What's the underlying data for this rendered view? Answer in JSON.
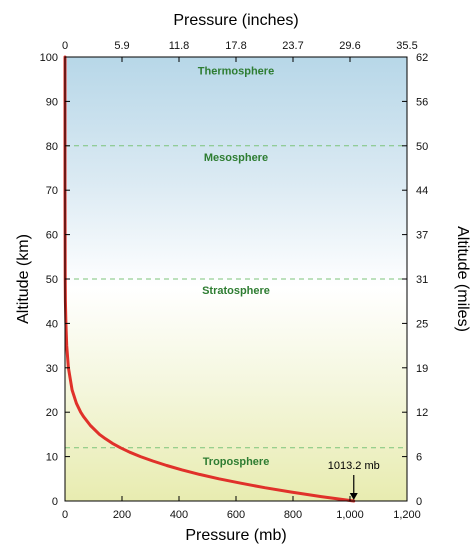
{
  "chart_data": {
    "type": "line",
    "xlabel_bottom": "Pressure (mb)",
    "xlabel_top": "Pressure (inches)",
    "ylabel_left": "Altitude (km)",
    "ylabel_right": "Altitude (miles)",
    "xlim": [
      0,
      1200
    ],
    "ylim": [
      0,
      100
    ],
    "x_ticks_bottom": [
      {
        "value": 0,
        "label": "0"
      },
      {
        "value": 200,
        "label": "200"
      },
      {
        "value": 400,
        "label": "400"
      },
      {
        "value": 600,
        "label": "600"
      },
      {
        "value": 800,
        "label": "800"
      },
      {
        "value": 1000,
        "label": "1,000"
      },
      {
        "value": 1200,
        "label": "1,200"
      }
    ],
    "x_ticks_top": [
      {
        "value": 0,
        "label": "0"
      },
      {
        "value": 200,
        "label": "5.9"
      },
      {
        "value": 400,
        "label": "11.8"
      },
      {
        "value": 600,
        "label": "17.8"
      },
      {
        "value": 800,
        "label": "23.7"
      },
      {
        "value": 1000,
        "label": "29.6"
      },
      {
        "value": 1200,
        "label": "35.5"
      }
    ],
    "y_ticks_left": [
      {
        "value": 0,
        "label": "0"
      },
      {
        "value": 10,
        "label": "10"
      },
      {
        "value": 20,
        "label": "20"
      },
      {
        "value": 30,
        "label": "30"
      },
      {
        "value": 40,
        "label": "40"
      },
      {
        "value": 50,
        "label": "50"
      },
      {
        "value": 60,
        "label": "60"
      },
      {
        "value": 70,
        "label": "70"
      },
      {
        "value": 80,
        "label": "80"
      },
      {
        "value": 90,
        "label": "90"
      },
      {
        "value": 100,
        "label": "100"
      }
    ],
    "y_ticks_right": [
      {
        "value": 0,
        "label": "0"
      },
      {
        "value": 10,
        "label": "6"
      },
      {
        "value": 20,
        "label": "12"
      },
      {
        "value": 30,
        "label": "19"
      },
      {
        "value": 40,
        "label": "25"
      },
      {
        "value": 50,
        "label": "31"
      },
      {
        "value": 60,
        "label": "37"
      },
      {
        "value": 70,
        "label": "44"
      },
      {
        "value": 80,
        "label": "50"
      },
      {
        "value": 90,
        "label": "56"
      },
      {
        "value": 100,
        "label": "62"
      }
    ],
    "layer_boundaries_km": [
      12,
      50,
      80
    ],
    "layers": [
      {
        "name": "Thermosphere",
        "label_altitude_km": 97
      },
      {
        "name": "Mesosphere",
        "label_altitude_km": 77.5
      },
      {
        "name": "Stratosphere",
        "label_altitude_km": 47.5
      },
      {
        "name": "Troposphere",
        "label_altitude_km": 9
      }
    ],
    "series": [
      {
        "points": [
          {
            "x": 1013.2,
            "y": 0
          },
          {
            "x": 899,
            "y": 1
          },
          {
            "x": 795,
            "y": 2
          },
          {
            "x": 701,
            "y": 3
          },
          {
            "x": 617,
            "y": 4
          },
          {
            "x": 540,
            "y": 5
          },
          {
            "x": 472,
            "y": 6
          },
          {
            "x": 411,
            "y": 7
          },
          {
            "x": 357,
            "y": 8
          },
          {
            "x": 308,
            "y": 9
          },
          {
            "x": 265,
            "y": 10
          },
          {
            "x": 227,
            "y": 11
          },
          {
            "x": 194,
            "y": 12
          },
          {
            "x": 166,
            "y": 13
          },
          {
            "x": 142,
            "y": 14
          },
          {
            "x": 121,
            "y": 15
          },
          {
            "x": 89,
            "y": 17
          },
          {
            "x": 65,
            "y": 19
          },
          {
            "x": 55,
            "y": 20
          },
          {
            "x": 40,
            "y": 22
          },
          {
            "x": 25,
            "y": 25
          },
          {
            "x": 12,
            "y": 30
          },
          {
            "x": 6,
            "y": 35
          },
          {
            "x": 3,
            "y": 40
          },
          {
            "x": 1.5,
            "y": 45
          },
          {
            "x": 0.8,
            "y": 50
          },
          {
            "x": 0.2,
            "y": 60
          },
          {
            "x": 0.05,
            "y": 70
          },
          {
            "x": 0.01,
            "y": 80
          },
          {
            "x": 0,
            "y": 100
          }
        ]
      }
    ],
    "annotation": {
      "text": "1013.2 mb",
      "x": 1013.2,
      "y": 0
    },
    "colors": {
      "curve": "#e0312a",
      "layer_label": "#2e7d32",
      "boundary": "#7cc47a",
      "sky_top": "#b7d7e8",
      "sky_mid": "#ffffff",
      "ground": "#e8ecb0"
    },
    "grid": false
  }
}
